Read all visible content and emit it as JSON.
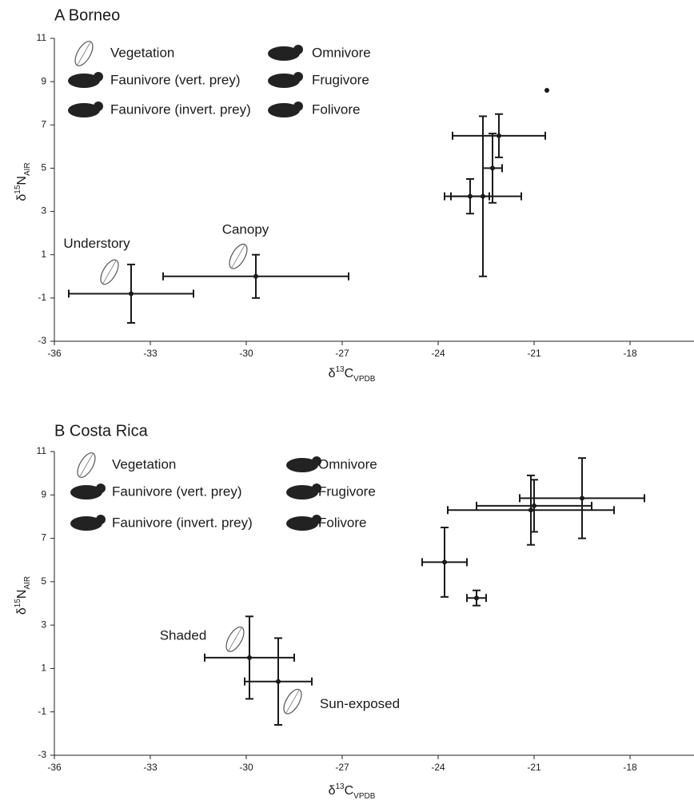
{
  "chart_data": [
    {
      "type": "scatter",
      "title": "A Borneo",
      "color": "#1a1a1a",
      "xlabel": [
        "δ",
        "13",
        "C",
        "VPDB"
      ],
      "ylabel": [
        "δ",
        "15",
        "N",
        "AIR"
      ],
      "xlim": [
        -36,
        -16
      ],
      "ylim": [
        -3,
        11
      ],
      "xticks": [
        -36,
        -33,
        -30,
        -27,
        -24,
        -21,
        -18
      ],
      "yticks": [
        -3,
        -1,
        1,
        3,
        5,
        7,
        9,
        11
      ],
      "series": [
        {
          "name": "Vegetation",
          "x": [
            -33.6,
            -29.7
          ],
          "values": [
            -0.8,
            0.0
          ],
          "xerr": [
            1.95,
            2.9
          ],
          "yerr": [
            1.35,
            1.0
          ],
          "point_labels": [
            "Understory",
            "Canopy"
          ]
        },
        {
          "name": "Faunivore (vert. prey)",
          "x": [
            -20.6
          ],
          "values": [
            8.6
          ],
          "xerr": [
            null
          ],
          "yerr": [
            null
          ]
        },
        {
          "name": "Faunivore (invert. prey)",
          "x": [
            -22.1
          ],
          "values": [
            6.5
          ],
          "xerr": [
            1.45
          ],
          "yerr": [
            1.0
          ]
        },
        {
          "name": "Omnivore",
          "x": [
            -22.3
          ],
          "values": [
            5.0
          ],
          "xerr": [
            0.3
          ],
          "yerr": [
            1.6
          ]
        },
        {
          "name": "Frugivore",
          "x": [
            -23.0
          ],
          "values": [
            3.7
          ],
          "xerr": [
            0.6
          ],
          "yerr": [
            0.8
          ]
        },
        {
          "name": "Folivore",
          "x": [
            -22.6
          ],
          "values": [
            3.7
          ],
          "xerr": [
            1.2
          ],
          "yerr": [
            3.7
          ]
        }
      ]
    },
    {
      "type": "scatter",
      "title": "B Costa Rica",
      "color": "#1a1a1a",
      "xlabel": [
        "δ",
        "13",
        "C",
        "VPDB"
      ],
      "ylabel": [
        "δ",
        "15",
        "N",
        "AIR"
      ],
      "xlim": [
        -36,
        -16
      ],
      "ylim": [
        -3,
        11
      ],
      "xticks": [
        -36,
        -33,
        -30,
        -27,
        -24,
        -21,
        -18
      ],
      "yticks": [
        -3,
        -1,
        1,
        3,
        5,
        7,
        9,
        11
      ],
      "series": [
        {
          "name": "Vegetation",
          "x": [
            -29.9,
            -29.0
          ],
          "values": [
            1.5,
            0.4
          ],
          "xerr": [
            1.4,
            1.05
          ],
          "yerr": [
            1.9,
            2.0
          ],
          "point_labels": [
            "Shaded",
            "Sun-exposed"
          ]
        },
        {
          "name": "Faunivore (vert. prey)",
          "x": [
            -19.5
          ],
          "values": [
            8.85
          ],
          "xerr": [
            1.95
          ],
          "yerr": [
            1.85
          ]
        },
        {
          "name": "Faunivore (invert. prey)",
          "x": [
            -21.0
          ],
          "values": [
            8.5
          ],
          "xerr": [
            1.8
          ],
          "yerr": [
            1.2
          ]
        },
        {
          "name": "Omnivore",
          "x": [
            -21.1
          ],
          "values": [
            8.3
          ],
          "xerr": [
            2.6
          ],
          "yerr": [
            1.6
          ]
        },
        {
          "name": "Frugivore",
          "x": [
            -22.8
          ],
          "values": [
            4.25
          ],
          "xerr": [
            0.3
          ],
          "yerr": [
            0.35
          ]
        },
        {
          "name": "Folivore",
          "x": [
            -23.8
          ],
          "values": [
            5.9
          ],
          "xerr": [
            0.7
          ],
          "yerr": [
            1.6
          ]
        }
      ]
    }
  ]
}
